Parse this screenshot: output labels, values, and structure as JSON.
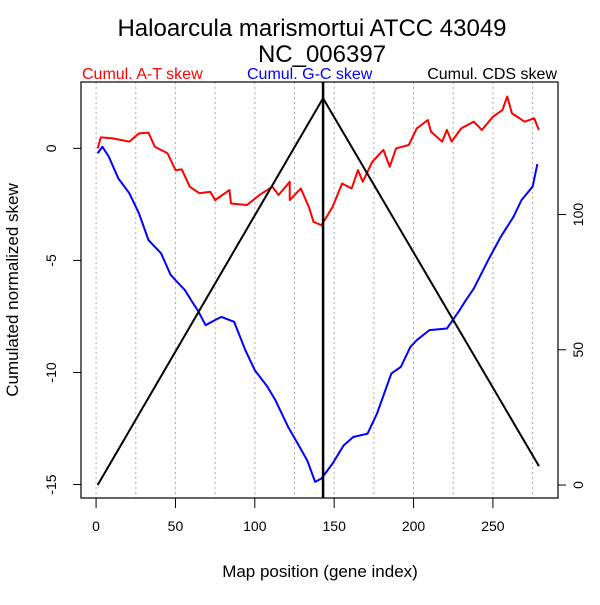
{
  "chart_data": {
    "type": "line",
    "title": "Haloarcula marismortui ATCC 43049",
    "subtitle": "NC_006397",
    "xlabel": "Map position (gene index)",
    "ylabel": "Cumulated normalized skew",
    "xlim": [
      -9.5,
      291
    ],
    "ylim": [
      -15.6,
      2.96
    ],
    "y2lim": [
      -4.8,
      149
    ],
    "xticks": [
      0,
      50,
      100,
      150,
      200,
      250
    ],
    "yticks": [
      0,
      -5,
      -10,
      -15
    ],
    "y2ticks": [
      0,
      50,
      100
    ],
    "grid_x": [
      0,
      25,
      50,
      75,
      100,
      125,
      150,
      175,
      200,
      225,
      250,
      275
    ],
    "origin_marker_x": 143,
    "legend": [
      {
        "label": "Cumul. A-T skew",
        "color": "#ff0000"
      },
      {
        "label": "Cumul. G-C skew",
        "color": "#0000ff"
      },
      {
        "label": "Cumul. CDS skew",
        "color": "#000000"
      }
    ],
    "series": [
      {
        "name": "Cumul. A-T skew",
        "color": "#ff0000",
        "axis": "left",
        "points": [
          [
            1,
            0
          ],
          [
            3,
            0.49
          ],
          [
            10,
            0.45
          ],
          [
            21,
            0.3
          ],
          [
            27,
            0.67
          ],
          [
            33,
            0.7
          ],
          [
            37,
            0.07
          ],
          [
            45,
            -0.22
          ],
          [
            50,
            -0.97
          ],
          [
            54,
            -0.94
          ],
          [
            59,
            -1.71
          ],
          [
            65,
            -2.0
          ],
          [
            72,
            -1.94
          ],
          [
            75,
            -2.31
          ],
          [
            84,
            -1.86
          ],
          [
            85,
            -2.46
          ],
          [
            95,
            -2.53
          ],
          [
            103,
            -2.08
          ],
          [
            111,
            -1.71
          ],
          [
            115,
            -2.08
          ],
          [
            122,
            -1.49
          ],
          [
            122,
            -2.31
          ],
          [
            129,
            -1.79
          ],
          [
            134,
            -2.61
          ],
          [
            137,
            -3.28
          ],
          [
            142,
            -3.43
          ],
          [
            149,
            -2.61
          ],
          [
            155,
            -1.57
          ],
          [
            161,
            -1.79
          ],
          [
            165,
            -0.97
          ],
          [
            168,
            -1.49
          ],
          [
            174,
            -0.6
          ],
          [
            181,
            -0.07
          ],
          [
            185,
            -0.82
          ],
          [
            189,
            0
          ],
          [
            197,
            0.15
          ],
          [
            202,
            0.89
          ],
          [
            209,
            1.26
          ],
          [
            211,
            0.74
          ],
          [
            218,
            0.3
          ],
          [
            221,
            0.82
          ],
          [
            224,
            0.3
          ],
          [
            230,
            0.89
          ],
          [
            238,
            1.19
          ],
          [
            243,
            0.82
          ],
          [
            250,
            1.41
          ],
          [
            256,
            1.71
          ],
          [
            259,
            2.31
          ],
          [
            262,
            1.56
          ],
          [
            270,
            1.19
          ],
          [
            276,
            1.34
          ],
          [
            279,
            0.82
          ]
        ]
      },
      {
        "name": "Cumul. G-C skew",
        "color": "#0000ff",
        "axis": "left",
        "points": [
          [
            1,
            -0.22
          ],
          [
            4,
            0.07
          ],
          [
            8,
            -0.37
          ],
          [
            14,
            -1.34
          ],
          [
            21,
            -2.01
          ],
          [
            27,
            -2.9
          ],
          [
            33,
            -4.09
          ],
          [
            41,
            -4.69
          ],
          [
            47,
            -5.65
          ],
          [
            52,
            -6.03
          ],
          [
            56,
            -6.33
          ],
          [
            61,
            -6.9
          ],
          [
            64,
            -7.22
          ],
          [
            69,
            -7.89
          ],
          [
            75,
            -7.66
          ],
          [
            79,
            -7.52
          ],
          [
            87,
            -7.74
          ],
          [
            94,
            -9.0
          ],
          [
            100,
            -9.9
          ],
          [
            108,
            -10.64
          ],
          [
            113,
            -11.24
          ],
          [
            121,
            -12.43
          ],
          [
            127,
            -13.17
          ],
          [
            133,
            -13.92
          ],
          [
            138,
            -14.88
          ],
          [
            142,
            -14.73
          ],
          [
            149,
            -14.06
          ],
          [
            156,
            -13.25
          ],
          [
            162,
            -12.88
          ],
          [
            171,
            -12.73
          ],
          [
            177,
            -11.83
          ],
          [
            183,
            -10.64
          ],
          [
            186,
            -10.05
          ],
          [
            192,
            -9.75
          ],
          [
            198,
            -8.86
          ],
          [
            202,
            -8.56
          ],
          [
            210,
            -8.11
          ],
          [
            221,
            -8.04
          ],
          [
            229,
            -7.22
          ],
          [
            233,
            -6.77
          ],
          [
            238,
            -6.25
          ],
          [
            247,
            -4.99
          ],
          [
            255,
            -3.94
          ],
          [
            263,
            -3.05
          ],
          [
            268,
            -2.31
          ],
          [
            275,
            -1.71
          ],
          [
            278,
            -0.7
          ]
        ]
      },
      {
        "name": "Cumul. CDS skew",
        "color": "#000000",
        "axis": "right",
        "points": [
          [
            1,
            0
          ],
          [
            143,
            143
          ],
          [
            279,
            7
          ]
        ]
      }
    ]
  }
}
